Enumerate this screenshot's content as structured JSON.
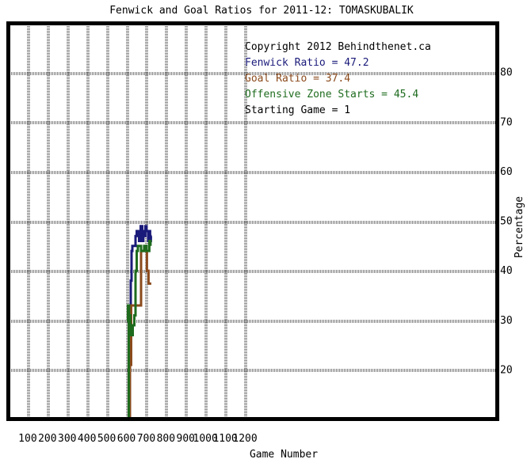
{
  "chart_data": {
    "type": "line",
    "title": "Fenwick and Goal Ratios for 2011-12: TOMASKUBALIK",
    "xlabel": "Game Number",
    "ylabel": "Percentage",
    "xlim": [
      0,
      1240
    ],
    "ylim": [
      10,
      90
    ],
    "x_ticks": [
      100,
      200,
      300,
      400,
      500,
      600,
      700,
      800,
      900,
      1000,
      1100,
      1200
    ],
    "y_ticks": [
      20,
      30,
      40,
      50,
      60,
      70,
      80
    ],
    "grid": true,
    "legend_position": "top-right",
    "annotations": [
      {
        "text": "Copyright 2012 Behindthenet.ca",
        "color": "#000000"
      },
      {
        "text": "Fenwick Ratio = 47.2",
        "color": "#1a1a7a"
      },
      {
        "text": "Goal Ratio = 37.4",
        "color": "#8b4a1c"
      },
      {
        "text": "Offensive Zone Starts = 45.4",
        "color": "#1e6b1e"
      },
      {
        "text": "Starting Game = 1",
        "color": "#000000"
      }
    ],
    "series": [
      {
        "name": "Fenwick Ratio",
        "color": "#1a1a7a",
        "points": [
          [
            612,
            10
          ],
          [
            612,
            21
          ],
          [
            616,
            21
          ],
          [
            616,
            33
          ],
          [
            622,
            33
          ],
          [
            622,
            38
          ],
          [
            626,
            38
          ],
          [
            626,
            44
          ],
          [
            630,
            44
          ],
          [
            630,
            45
          ],
          [
            646,
            45
          ],
          [
            646,
            47
          ],
          [
            652,
            47
          ],
          [
            652,
            48
          ],
          [
            658,
            48
          ],
          [
            658,
            47
          ],
          [
            664,
            47
          ],
          [
            664,
            46
          ],
          [
            668,
            46
          ],
          [
            668,
            48
          ],
          [
            672,
            48
          ],
          [
            672,
            49
          ],
          [
            680,
            49
          ],
          [
            680,
            46
          ],
          [
            686,
            46
          ],
          [
            686,
            48
          ],
          [
            692,
            48
          ],
          [
            692,
            47
          ],
          [
            696,
            47
          ],
          [
            696,
            49
          ],
          [
            702,
            49
          ],
          [
            702,
            48
          ],
          [
            710,
            48
          ],
          [
            710,
            46
          ],
          [
            716,
            46
          ],
          [
            716,
            48
          ],
          [
            720,
            48
          ],
          [
            720,
            46
          ],
          [
            724,
            46
          ],
          [
            724,
            47
          ],
          [
            728,
            47
          ]
        ]
      },
      {
        "name": "Goal Ratio",
        "color": "#8b4a1c",
        "points": [
          [
            618,
            10
          ],
          [
            618,
            21
          ],
          [
            624,
            21
          ],
          [
            624,
            33
          ],
          [
            674,
            33
          ],
          [
            674,
            44
          ],
          [
            704,
            44
          ],
          [
            704,
            40
          ],
          [
            712,
            40
          ],
          [
            712,
            37.4
          ],
          [
            726,
            37.4
          ]
        ]
      },
      {
        "name": "Offensive Zone Starts",
        "color": "#1e6b1e",
        "points": [
          [
            612,
            10
          ],
          [
            612,
            30
          ],
          [
            608,
            30
          ],
          [
            608,
            33
          ],
          [
            614,
            33
          ],
          [
            614,
            31
          ],
          [
            620,
            31
          ],
          [
            620,
            29
          ],
          [
            624,
            29
          ],
          [
            624,
            27
          ],
          [
            632,
            27
          ],
          [
            632,
            29
          ],
          [
            640,
            29
          ],
          [
            640,
            31
          ],
          [
            646,
            31
          ],
          [
            646,
            40
          ],
          [
            652,
            40
          ],
          [
            652,
            44
          ],
          [
            658,
            44
          ],
          [
            658,
            45
          ],
          [
            674,
            45
          ],
          [
            674,
            44
          ],
          [
            690,
            44
          ],
          [
            690,
            45
          ],
          [
            702,
            45
          ],
          [
            702,
            44
          ],
          [
            716,
            44
          ],
          [
            716,
            46
          ],
          [
            722,
            46
          ],
          [
            722,
            45
          ]
        ]
      }
    ]
  }
}
